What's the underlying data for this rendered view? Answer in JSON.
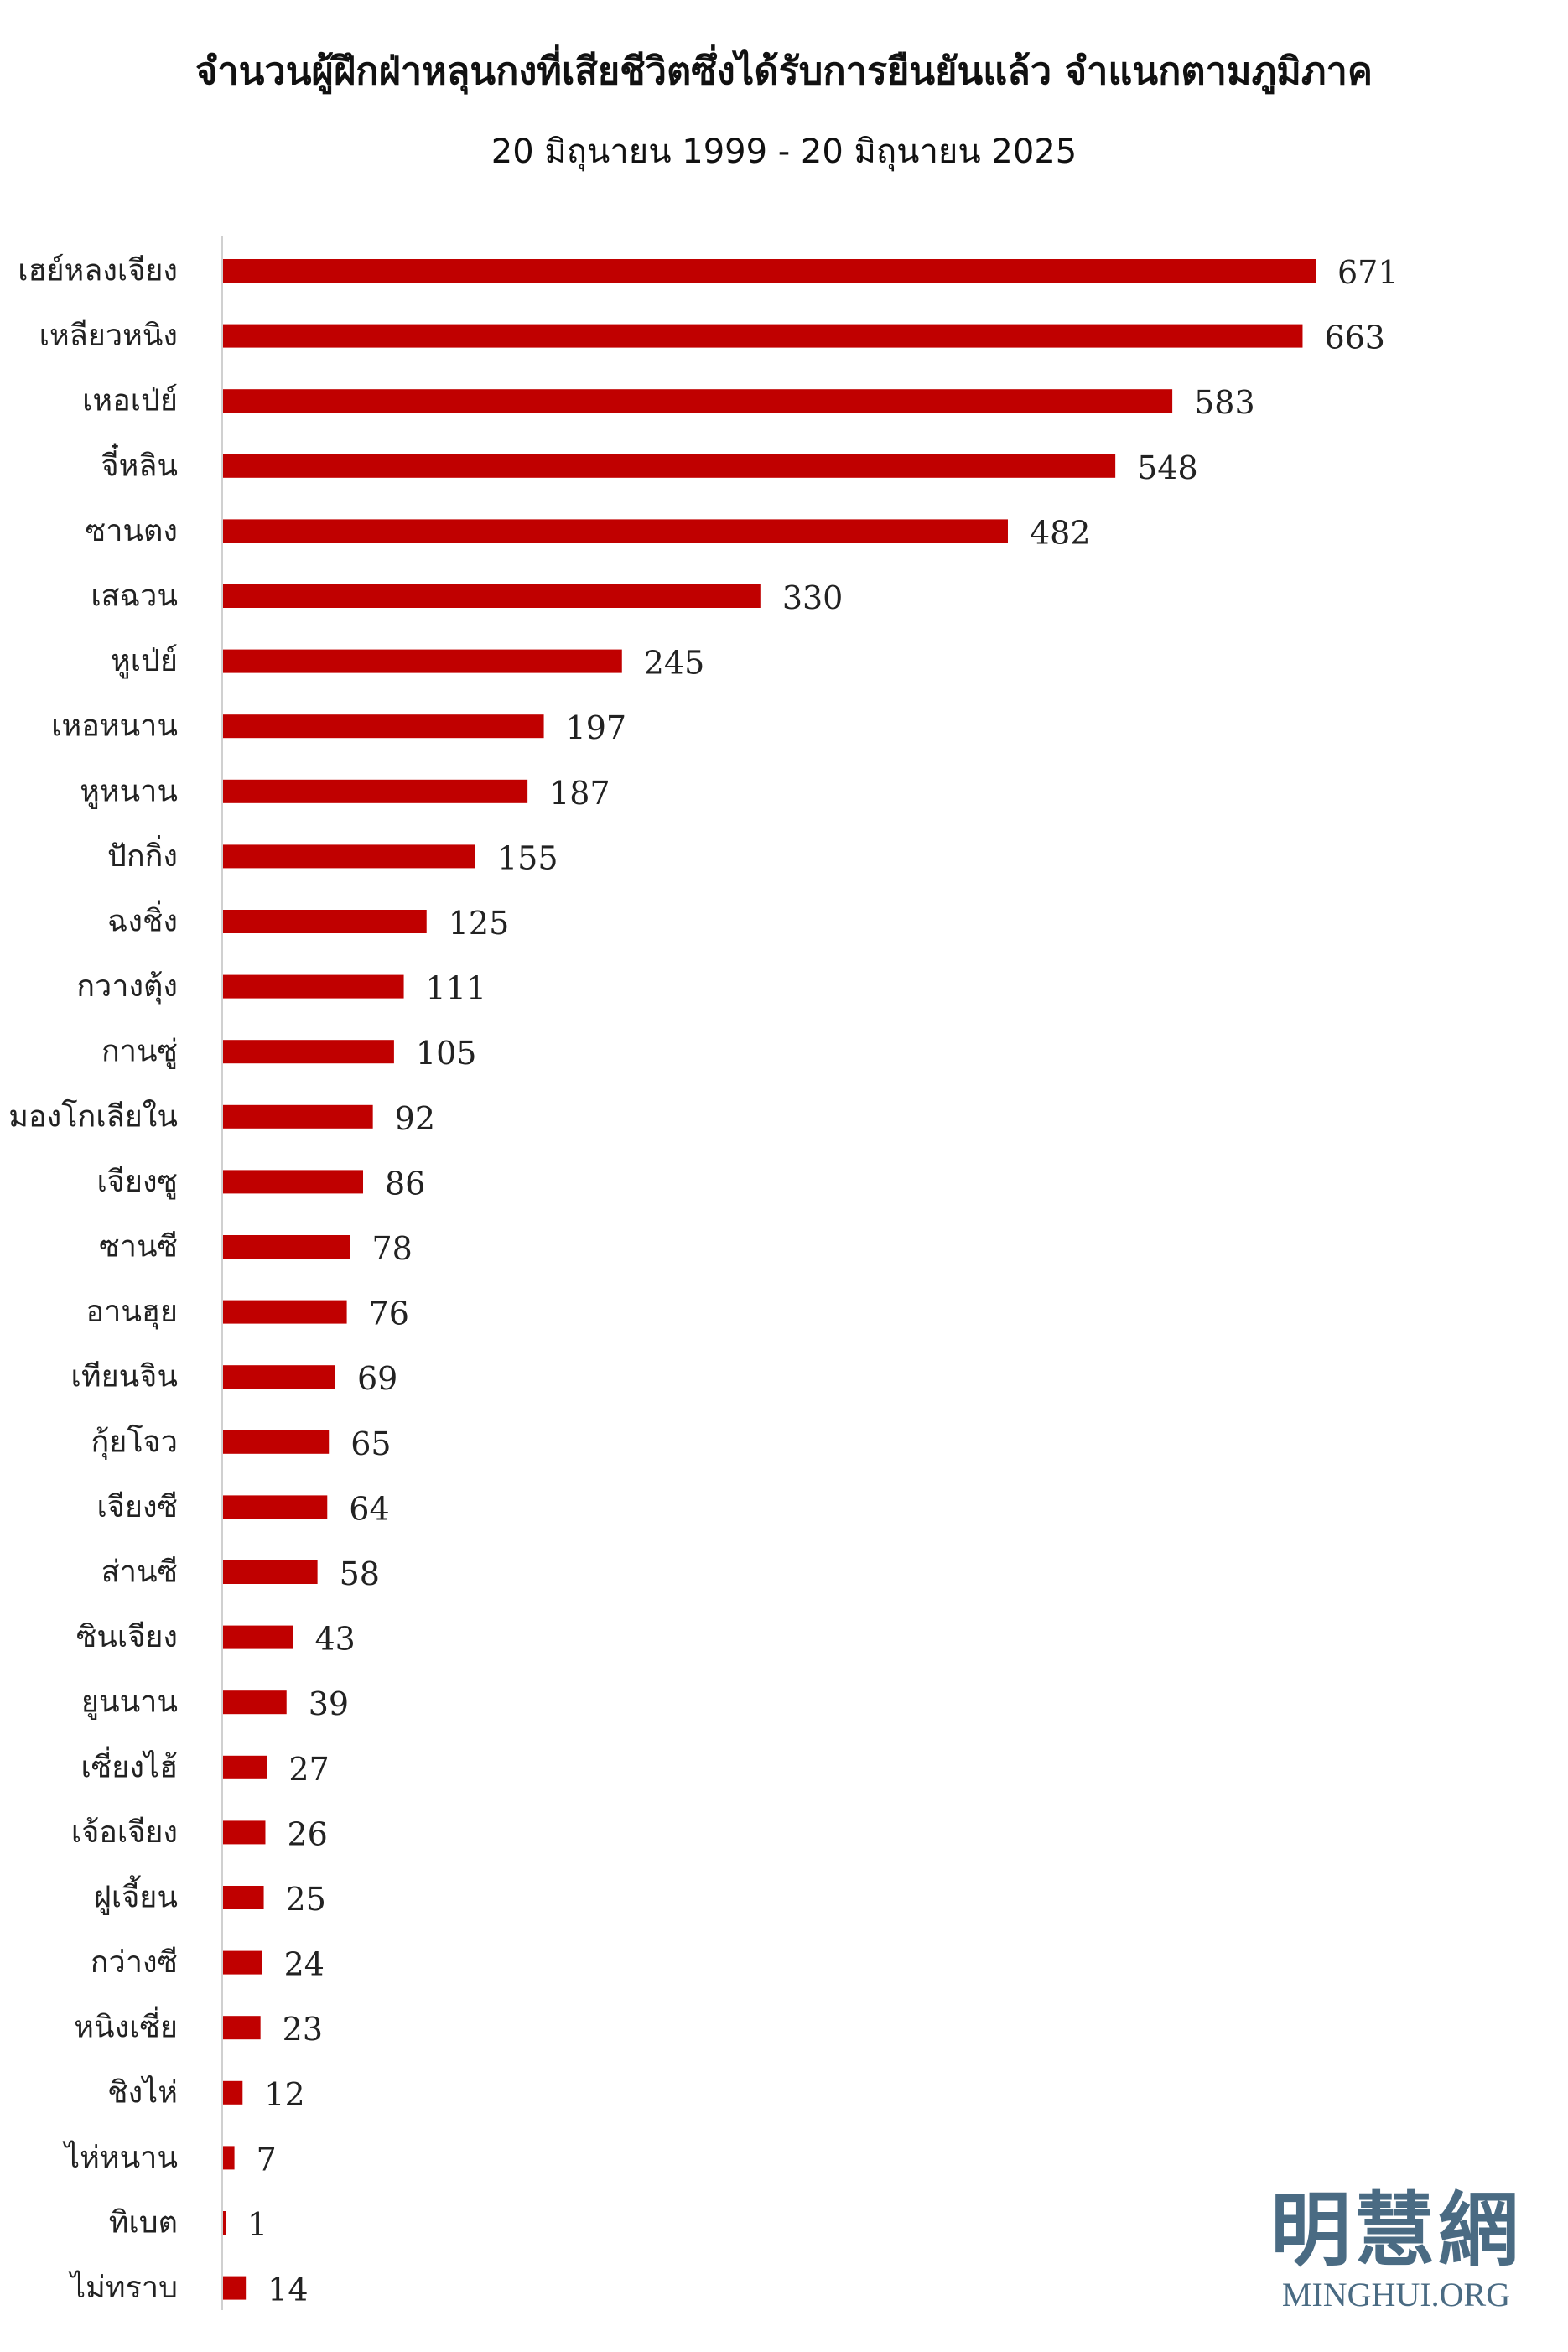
{
  "chart_data": {
    "type": "bar",
    "orientation": "horizontal",
    "title": "จำนวนผู้ฝึกฝ่าหลุนกงที่เสียชีวิตซึ่งได้รับการยืนยันแล้ว จำแนกตามภูมิภาค",
    "subtitle": "20 มิถุนายน 1999 - 20 มิถุนายน 2025",
    "categories": [
      "เฮย์หลงเจียง",
      "เหลียวหนิง",
      "เหอเป่ย์",
      "จี๋หลิน",
      "ซานตง",
      "เสฉวน",
      "หูเป่ย์",
      "เหอหนาน",
      "หูหนาน",
      "ปักกิ่ง",
      "ฉงชิ่ง",
      "กวางตุ้ง",
      "กานซู่",
      "มองโกเลียใน",
      "เจียงซู",
      "ซานซี",
      "อานฮุย",
      "เทียนจิน",
      "กุ้ยโจว",
      "เจียงซี",
      "ส่านซี",
      "ซินเจียง",
      "ยูนนาน",
      "เซี่ยงไฮ้",
      "เจ้อเจียง",
      "ฝูเจี้ยน",
      "กว่างซี",
      "หนิงเซี่ย",
      "ชิงไห่",
      "ไห่หนาน",
      "ทิเบต",
      "ไม่ทราบ"
    ],
    "values": [
      671,
      663,
      583,
      548,
      482,
      330,
      245,
      197,
      187,
      155,
      125,
      111,
      105,
      92,
      86,
      78,
      76,
      69,
      65,
      64,
      58,
      43,
      39,
      27,
      26,
      25,
      24,
      23,
      12,
      7,
      1,
      14
    ],
    "xlim": [
      0,
      671
    ],
    "grid": false,
    "legend": "none",
    "data_labels": true,
    "bar_color": "#c00000"
  },
  "logo": {
    "cjk": "明慧網",
    "latin": "MINGHUI.ORG"
  }
}
